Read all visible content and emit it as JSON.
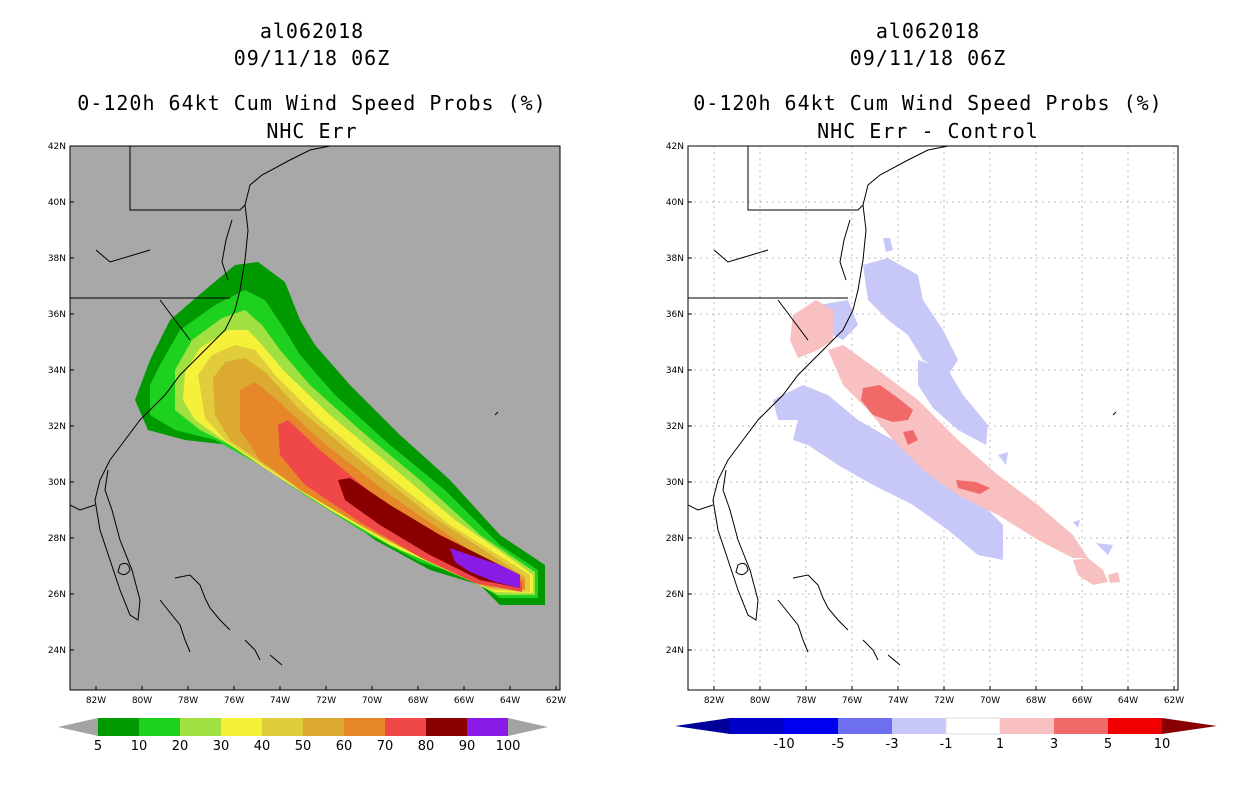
{
  "panels": [
    {
      "storm_id": "al062018",
      "datetime": "09/11/18 06Z",
      "product": "0-120h 64kt Cum Wind Speed Probs (%)",
      "subtitle": "NHC Err",
      "colorbar": {
        "labels": [
          "5",
          "10",
          "20",
          "30",
          "40",
          "50",
          "60",
          "70",
          "80",
          "90",
          "100"
        ],
        "colors": [
          "#009a00",
          "#1fd11f",
          "#a0e040",
          "#f5f03a",
          "#e1cd3c",
          "#dcaa30",
          "#e6872a",
          "#f04848",
          "#8a0000",
          "#8a1ae6"
        ],
        "end_color": "#a3a3a3"
      }
    },
    {
      "storm_id": "al062018",
      "datetime": "09/11/18 06Z",
      "product": "0-120h 64kt Cum Wind Speed Probs (%)",
      "subtitle": "NHC Err - Control",
      "colorbar": {
        "labels": [
          "-10",
          "-5",
          "-3",
          "-1",
          "1",
          "3",
          "5",
          "10"
        ],
        "colors": [
          "#0000c8",
          "#0000f0",
          "#6e6ef0",
          "#c8c8f8",
          "#ffffff",
          "#f8c0c0",
          "#f06a6a",
          "#f00000"
        ],
        "low_end": "#00009a",
        "high_end": "#8a0000"
      }
    }
  ],
  "axes": {
    "lat_labels": [
      "42N",
      "40N",
      "38N",
      "36N",
      "34N",
      "32N",
      "30N",
      "28N",
      "26N",
      "24N"
    ],
    "lon_labels": [
      "82W",
      "80W",
      "78W",
      "76W",
      "74W",
      "72W",
      "70W",
      "68W",
      "66W",
      "64W",
      "62W"
    ]
  },
  "colors": {
    "map_bg_left": "#a8a8a8",
    "map_bg_right": "#ffffff",
    "coast": "#000000"
  }
}
